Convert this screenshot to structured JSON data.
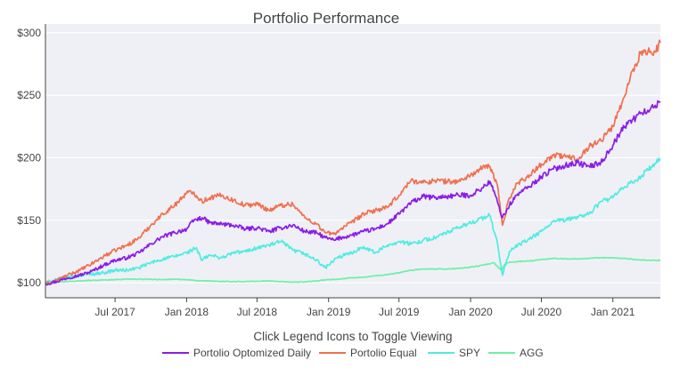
{
  "chart_data": {
    "type": "line",
    "title": "Portfolio Performance",
    "xlabel": "",
    "ylabel": "",
    "x_range": [
      "2017-01-03",
      "2021-05-03"
    ],
    "ylim": [
      88,
      307
    ],
    "y_ticks": [
      100,
      150,
      200,
      250,
      300
    ],
    "y_tick_labels": [
      "$100",
      "$150",
      "$200",
      "$250",
      "$300"
    ],
    "x_ticks": [
      "2017-07-01",
      "2018-01-01",
      "2018-07-01",
      "2019-01-01",
      "2019-07-01",
      "2020-01-01",
      "2020-07-01",
      "2021-01-01"
    ],
    "x_tick_labels": [
      "Jul 2017",
      "Jan 2018",
      "Jul 2018",
      "Jan 2019",
      "Jul 2019",
      "Jan 2020",
      "Jul 2020",
      "Jan 2021"
    ],
    "grid": true,
    "legend": {
      "title": "Click Legend Icons to Toggle Viewing",
      "placement": "bottom-center"
    },
    "series": [
      {
        "name": "Portolio Optomized Daily",
        "color": "#8a1ce8",
        "x": [
          "2017-01-03",
          "2017-02-01",
          "2017-03-01",
          "2017-04-01",
          "2017-05-01",
          "2017-06-01",
          "2017-07-01",
          "2017-08-01",
          "2017-09-01",
          "2017-10-01",
          "2017-11-01",
          "2017-12-01",
          "2018-01-01",
          "2018-01-20",
          "2018-02-10",
          "2018-03-01",
          "2018-04-01",
          "2018-05-01",
          "2018-06-01",
          "2018-07-01",
          "2018-08-01",
          "2018-09-01",
          "2018-10-01",
          "2018-11-01",
          "2018-12-01",
          "2018-12-24",
          "2019-01-15",
          "2019-02-01",
          "2019-03-01",
          "2019-04-01",
          "2019-05-01",
          "2019-06-01",
          "2019-07-01",
          "2019-08-01",
          "2019-09-01",
          "2019-10-01",
          "2019-11-01",
          "2019-12-01",
          "2020-01-01",
          "2020-02-01",
          "2020-02-20",
          "2020-03-10",
          "2020-03-23",
          "2020-04-10",
          "2020-05-01",
          "2020-06-01",
          "2020-07-01",
          "2020-08-01",
          "2020-09-01",
          "2020-10-01",
          "2020-11-01",
          "2020-12-01",
          "2021-01-01",
          "2021-01-15",
          "2021-02-01",
          "2021-02-15",
          "2021-03-01",
          "2021-03-15",
          "2021-04-01",
          "2021-04-15",
          "2021-05-03"
        ],
        "y": [
          99,
          101,
          104,
          106,
          109,
          114,
          118,
          120,
          124,
          131,
          137,
          140,
          143,
          150,
          152,
          148,
          147,
          146,
          143,
          144,
          141,
          144,
          146,
          141,
          140,
          136,
          134,
          136,
          138,
          141,
          143,
          147,
          155,
          164,
          169,
          168,
          169,
          170,
          170,
          176,
          181,
          165,
          152,
          162,
          171,
          177,
          185,
          191,
          194,
          196,
          193,
          196,
          210,
          218,
          225,
          230,
          232,
          236,
          238,
          240,
          245
        ]
      },
      {
        "name": "Portolio Equal",
        "color": "#f0704f",
        "x": [
          "2017-01-03",
          "2017-02-01",
          "2017-03-01",
          "2017-04-01",
          "2017-05-01",
          "2017-06-01",
          "2017-07-01",
          "2017-08-01",
          "2017-09-01",
          "2017-10-01",
          "2017-11-01",
          "2017-12-01",
          "2018-01-01",
          "2018-01-20",
          "2018-02-10",
          "2018-03-01",
          "2018-04-01",
          "2018-05-01",
          "2018-06-01",
          "2018-07-01",
          "2018-08-01",
          "2018-09-01",
          "2018-10-01",
          "2018-11-01",
          "2018-12-01",
          "2018-12-24",
          "2019-01-15",
          "2019-02-01",
          "2019-03-01",
          "2019-04-01",
          "2019-05-01",
          "2019-06-01",
          "2019-07-01",
          "2019-08-01",
          "2019-09-01",
          "2019-10-01",
          "2019-11-01",
          "2019-12-01",
          "2020-01-01",
          "2020-02-01",
          "2020-02-20",
          "2020-03-10",
          "2020-03-23",
          "2020-04-10",
          "2020-05-01",
          "2020-06-01",
          "2020-07-01",
          "2020-08-01",
          "2020-09-01",
          "2020-10-01",
          "2020-11-01",
          "2020-12-01",
          "2021-01-01",
          "2021-01-15",
          "2021-02-01",
          "2021-02-15",
          "2021-03-01",
          "2021-03-15",
          "2021-04-01",
          "2021-04-15",
          "2021-05-03"
        ],
        "y": [
          99,
          102,
          106,
          110,
          115,
          121,
          126,
          130,
          136,
          146,
          155,
          162,
          172,
          172,
          165,
          168,
          170,
          166,
          162,
          163,
          158,
          162,
          163,
          152,
          147,
          140,
          139,
          143,
          148,
          155,
          158,
          160,
          170,
          182,
          180,
          182,
          181,
          181,
          186,
          192,
          193,
          178,
          146,
          168,
          180,
          186,
          195,
          202,
          201,
          199,
          209,
          214,
          225,
          237,
          250,
          265,
          275,
          285,
          285,
          282,
          292
        ]
      },
      {
        "name": "SPY",
        "color": "#4eece2",
        "x": [
          "2017-01-03",
          "2017-02-01",
          "2017-03-01",
          "2017-04-01",
          "2017-05-01",
          "2017-06-01",
          "2017-07-01",
          "2017-08-01",
          "2017-09-01",
          "2017-10-01",
          "2017-11-01",
          "2017-12-01",
          "2018-01-01",
          "2018-01-26",
          "2018-02-08",
          "2018-03-01",
          "2018-04-01",
          "2018-05-01",
          "2018-06-01",
          "2018-07-01",
          "2018-08-01",
          "2018-09-01",
          "2018-10-01",
          "2018-11-01",
          "2018-12-01",
          "2018-12-24",
          "2019-01-15",
          "2019-02-01",
          "2019-03-01",
          "2019-04-01",
          "2019-05-01",
          "2019-06-01",
          "2019-07-01",
          "2019-08-01",
          "2019-09-01",
          "2019-10-01",
          "2019-11-01",
          "2019-12-01",
          "2020-01-01",
          "2020-02-19",
          "2020-03-10",
          "2020-03-23",
          "2020-04-10",
          "2020-05-01",
          "2020-06-01",
          "2020-07-01",
          "2020-08-01",
          "2020-09-01",
          "2020-10-01",
          "2020-11-01",
          "2020-12-01",
          "2021-01-01",
          "2021-02-01",
          "2021-03-01",
          "2021-04-01",
          "2021-05-03"
        ],
        "y": [
          100,
          103,
          104,
          106,
          107,
          108,
          110,
          110,
          112,
          116,
          119,
          121,
          124,
          128,
          118,
          122,
          120,
          124,
          125,
          128,
          130,
          133,
          126,
          123,
          118,
          112,
          118,
          121,
          124,
          129,
          124,
          130,
          133,
          131,
          134,
          136,
          140,
          144,
          148,
          154,
          132,
          106,
          125,
          130,
          135,
          141,
          149,
          150,
          153,
          155,
          165,
          168,
          177,
          182,
          190,
          199
        ]
      },
      {
        "name": "AGG",
        "color": "#6ef0a6",
        "x": [
          "2017-01-03",
          "2017-02-01",
          "2017-03-01",
          "2017-04-01",
          "2017-05-01",
          "2017-06-01",
          "2017-07-01",
          "2017-08-01",
          "2017-09-01",
          "2017-10-01",
          "2017-11-01",
          "2017-12-01",
          "2018-01-01",
          "2018-02-01",
          "2018-03-01",
          "2018-04-01",
          "2018-05-01",
          "2018-06-01",
          "2018-07-01",
          "2018-08-01",
          "2018-09-01",
          "2018-10-01",
          "2018-11-01",
          "2018-12-01",
          "2019-01-01",
          "2019-02-01",
          "2019-03-01",
          "2019-04-01",
          "2019-05-01",
          "2019-06-01",
          "2019-07-01",
          "2019-08-01",
          "2019-09-01",
          "2019-10-01",
          "2019-11-01",
          "2019-12-01",
          "2020-01-01",
          "2020-02-01",
          "2020-03-01",
          "2020-03-20",
          "2020-04-01",
          "2020-05-01",
          "2020-06-01",
          "2020-07-01",
          "2020-08-01",
          "2020-09-01",
          "2020-10-01",
          "2020-11-01",
          "2020-12-01",
          "2021-01-01",
          "2021-02-01",
          "2021-03-01",
          "2021-04-01",
          "2021-05-03"
        ],
        "y": [
          100,
          100.5,
          101,
          101.5,
          102,
          102.2,
          102.5,
          103,
          103,
          102.8,
          102.6,
          102.8,
          102.5,
          101.5,
          101.5,
          101,
          101,
          101,
          101.2,
          101.5,
          101,
          100.5,
          100.8,
          101.5,
          102.5,
          103,
          104,
          104.5,
          105.5,
          106.5,
          108,
          110,
          111,
          111,
          111,
          111.5,
          112.5,
          114,
          116,
          110,
          116,
          117,
          117.5,
          118.5,
          119.5,
          119.2,
          119,
          119.5,
          120,
          120,
          119.5,
          118.5,
          118,
          118
        ]
      }
    ]
  }
}
